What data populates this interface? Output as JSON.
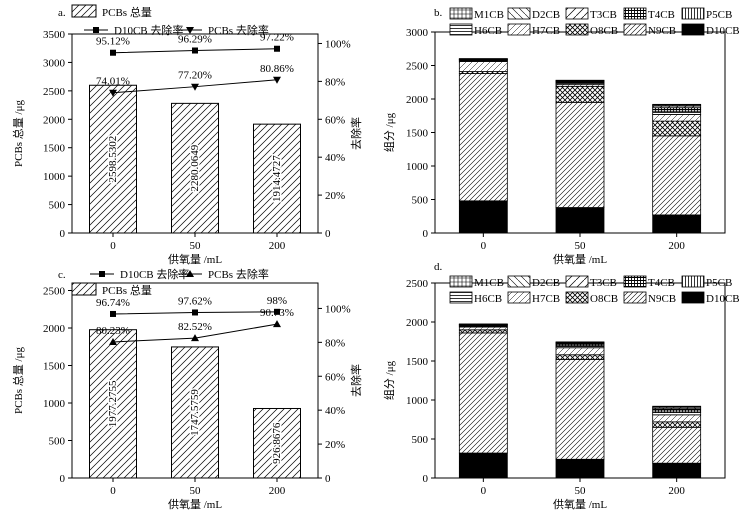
{
  "chart_data": [
    {
      "panel": "a.",
      "type": "bar",
      "categories": [
        "0",
        "50",
        "200"
      ],
      "values": [
        2598.5302,
        2280.0649,
        1914.4727
      ],
      "value_labels": [
        "2598.5302",
        "2280.0649",
        "1914.4727"
      ],
      "xlabel": "供氧量 /mL",
      "ylabel": "PCBs 总量 /μg",
      "y2label": "去除率",
      "ylim": [
        0,
        3500
      ],
      "yticks": [
        0,
        500,
        1000,
        1500,
        2000,
        2500,
        3000,
        3500
      ],
      "y2lim": [
        0,
        105
      ],
      "y2ticks": [
        0,
        20,
        40,
        60,
        80,
        100
      ],
      "y2ticklabels": [
        "0",
        "20%",
        "40%",
        "60%",
        "80%",
        "100%"
      ],
      "bar_legend": "PCBs 总量",
      "line_series": [
        {
          "name": "D10CB 去除率",
          "marker": "square",
          "values": [
            95.12,
            96.29,
            97.22
          ],
          "labels": [
            "95.12%",
            "96.29%",
            "97.22%"
          ]
        },
        {
          "name": "PCBs 去除率",
          "marker": "triangle-down",
          "values": [
            74.01,
            77.2,
            80.86
          ],
          "labels": [
            "74.01%",
            "77.20%",
            "80.86%"
          ]
        }
      ],
      "legend_order": [
        "bar",
        "D10CB 去除率",
        "PCBs 去除率"
      ],
      "grid": false
    },
    {
      "panel": "b.",
      "type": "bar",
      "stacked": true,
      "categories": [
        "0",
        "50",
        "200"
      ],
      "xlabel": "供氧量 /mL",
      "ylabel": "组分 /μg",
      "ylim": [
        0,
        3000
      ],
      "yticks": [
        0,
        500,
        1000,
        1500,
        2000,
        2500,
        3000
      ],
      "legend_rows": [
        [
          "M1CB",
          "D2CB",
          "T3CB",
          "T4CB",
          "P5CB"
        ],
        [
          "H6CB",
          "H7CB",
          "O8CB",
          "N9CB",
          "D10CB"
        ]
      ],
      "series": [
        {
          "name": "D10CB",
          "pattern": "solid",
          "values": [
            480,
            380,
            270
          ]
        },
        {
          "name": "N9CB",
          "pattern": "hatch-dense",
          "values": [
            1900,
            1570,
            1180
          ]
        },
        {
          "name": "O8CB",
          "pattern": "cross",
          "values": [
            30,
            240,
            220
          ]
        },
        {
          "name": "H7CB",
          "pattern": "hatch-light",
          "values": [
            150,
            30,
            100
          ]
        },
        {
          "name": "H6CB",
          "pattern": "hlines",
          "values": [
            10,
            15,
            40
          ]
        },
        {
          "name": "P5CB",
          "pattern": "vlines",
          "values": [
            10,
            10,
            30
          ]
        },
        {
          "name": "T4CB",
          "pattern": "grid-dense",
          "values": [
            10,
            15,
            30
          ]
        },
        {
          "name": "T3CB",
          "pattern": "hatch-wide",
          "values": [
            5,
            10,
            25
          ]
        },
        {
          "name": "D2CB",
          "pattern": "backhatch",
          "values": [
            5,
            5,
            15
          ]
        },
        {
          "name": "M1CB",
          "pattern": "grid",
          "values": [
            3,
            5,
            10
          ]
        }
      ],
      "grid": false
    },
    {
      "panel": "c.",
      "type": "bar",
      "categories": [
        "0",
        "50",
        "200"
      ],
      "values": [
        1977.2755,
        1747.5759,
        926.8676
      ],
      "value_labels": [
        "1977.2755",
        "1747.5759",
        "926.8676"
      ],
      "xlabel": "供氧量 /mL",
      "ylabel": "PCBs 总量 /μg",
      "y2label": "去除率",
      "ylim": [
        0,
        2600
      ],
      "yticks": [
        0,
        500,
        1000,
        1500,
        2000,
        2500
      ],
      "y2lim": [
        0,
        115
      ],
      "y2ticks": [
        0,
        20,
        40,
        60,
        80,
        100
      ],
      "y2ticklabels": [
        "0",
        "20%",
        "40%",
        "60%",
        "80%",
        "100%"
      ],
      "bar_legend": "PCBs 总量",
      "line_series": [
        {
          "name": "D10CB 去除率",
          "marker": "square",
          "values": [
            96.74,
            97.62,
            98
          ],
          "labels": [
            "96.74%",
            "97.62%",
            "98%"
          ]
        },
        {
          "name": "PCBs 去除率",
          "marker": "triangle-up",
          "values": [
            80.23,
            82.52,
            90.73
          ],
          "labels": [
            "80.23%",
            "82.52%",
            "90.73%"
          ]
        }
      ],
      "legend_order": [
        "D10CB 去除率",
        "PCBs 去除率",
        "bar"
      ],
      "grid": false
    },
    {
      "panel": "d.",
      "type": "bar",
      "stacked": true,
      "categories": [
        "0",
        "50",
        "200"
      ],
      "xlabel": "供氧量 /mL",
      "ylabel": "组分 /μg",
      "ylim": [
        0,
        2500
      ],
      "yticks": [
        0,
        500,
        1000,
        1500,
        2000,
        2500
      ],
      "legend_rows": [
        [
          "M1CB",
          "D2CB",
          "T3CB",
          "T4CB",
          "P5CB"
        ],
        [
          "H6CB",
          "H7CB",
          "O8CB",
          "N9CB",
          "D10CB"
        ]
      ],
      "series": [
        {
          "name": "D10CB",
          "pattern": "solid",
          "values": [
            320,
            240,
            190
          ]
        },
        {
          "name": "N9CB",
          "pattern": "hatch-dense",
          "values": [
            1540,
            1280,
            460
          ]
        },
        {
          "name": "O8CB",
          "pattern": "cross",
          "values": [
            40,
            60,
            70
          ]
        },
        {
          "name": "H7CB",
          "pattern": "hatch-light",
          "values": [
            35,
            90,
            90
          ]
        },
        {
          "name": "H6CB",
          "pattern": "hlines",
          "values": [
            10,
            20,
            30
          ]
        },
        {
          "name": "P5CB",
          "pattern": "vlines",
          "values": [
            8,
            15,
            20
          ]
        },
        {
          "name": "T4CB",
          "pattern": "grid-dense",
          "values": [
            8,
            15,
            20
          ]
        },
        {
          "name": "T3CB",
          "pattern": "hatch-wide",
          "values": [
            6,
            10,
            15
          ]
        },
        {
          "name": "D2CB",
          "pattern": "backhatch",
          "values": [
            5,
            8,
            15
          ]
        },
        {
          "name": "M1CB",
          "pattern": "grid",
          "values": [
            3,
            7,
            10
          ]
        }
      ],
      "grid": false
    }
  ]
}
